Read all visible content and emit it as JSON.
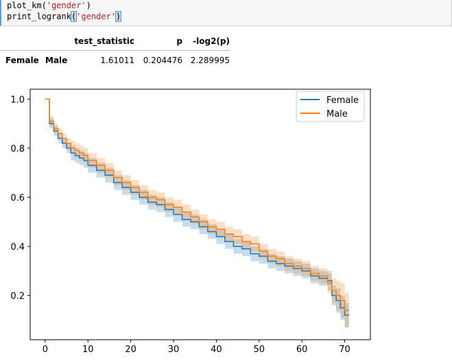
{
  "code": {
    "line1_fn": "plot_km(",
    "line1_arg": "'gender'",
    "line1_close": ")",
    "line2_fn": "print_logrank",
    "line2_open": "(",
    "line2_arg": "'gender'",
    "line2_close": ")"
  },
  "table": {
    "columns": [
      "test_statistic",
      "p",
      "-log2(p)"
    ],
    "rows": [
      {
        "index": [
          "Female",
          "Male"
        ],
        "values": [
          "1.61011",
          "0.204476",
          "2.289995"
        ]
      }
    ]
  },
  "colors": {
    "female": "#1f77b4",
    "male": "#ff7f0e"
  },
  "chart_data": {
    "type": "line",
    "title": "",
    "xlabel": "",
    "ylabel": "",
    "xlim": [
      -3.5,
      76
    ],
    "ylim": [
      0.02,
      1.04
    ],
    "xticks": [
      0,
      10,
      20,
      30,
      40,
      50,
      60,
      70
    ],
    "yticks": [
      0.2,
      0.4,
      0.6,
      0.8,
      1.0
    ],
    "xtick_labels": [
      "0",
      "10",
      "20",
      "30",
      "40",
      "50",
      "60",
      "70"
    ],
    "ytick_labels": [
      "0.2",
      "0.4",
      "0.6",
      "0.8",
      "1.0"
    ],
    "legend_position": "top-right",
    "step": true,
    "series": [
      {
        "name": "Female",
        "color": "#1f77b4",
        "x": [
          0,
          1,
          2,
          3,
          4,
          5,
          6,
          7,
          8,
          9,
          10,
          12,
          14,
          16,
          18,
          20,
          22,
          24,
          26,
          28,
          30,
          32,
          34,
          36,
          38,
          40,
          42,
          44,
          46,
          48,
          50,
          52,
          54,
          56,
          58,
          60,
          62,
          64,
          66,
          67,
          68,
          69,
          70,
          71
        ],
        "y": [
          1.0,
          0.9,
          0.87,
          0.84,
          0.82,
          0.8,
          0.78,
          0.77,
          0.76,
          0.75,
          0.73,
          0.71,
          0.69,
          0.66,
          0.64,
          0.62,
          0.6,
          0.58,
          0.57,
          0.55,
          0.53,
          0.51,
          0.5,
          0.48,
          0.46,
          0.44,
          0.42,
          0.4,
          0.39,
          0.37,
          0.36,
          0.34,
          0.33,
          0.32,
          0.31,
          0.3,
          0.28,
          0.27,
          0.26,
          0.2,
          0.18,
          0.15,
          0.12,
          0.12
        ],
        "ci_lower": [
          1.0,
          0.88,
          0.85,
          0.82,
          0.8,
          0.78,
          0.75,
          0.74,
          0.73,
          0.72,
          0.7,
          0.68,
          0.66,
          0.63,
          0.61,
          0.59,
          0.57,
          0.55,
          0.54,
          0.52,
          0.5,
          0.48,
          0.47,
          0.45,
          0.43,
          0.41,
          0.39,
          0.37,
          0.36,
          0.34,
          0.33,
          0.31,
          0.3,
          0.29,
          0.28,
          0.27,
          0.25,
          0.24,
          0.22,
          0.16,
          0.13,
          0.1,
          0.07,
          0.07
        ],
        "ci_upper": [
          1.0,
          0.92,
          0.89,
          0.86,
          0.84,
          0.82,
          0.81,
          0.8,
          0.79,
          0.78,
          0.76,
          0.74,
          0.72,
          0.69,
          0.67,
          0.65,
          0.63,
          0.61,
          0.6,
          0.58,
          0.56,
          0.54,
          0.53,
          0.51,
          0.49,
          0.47,
          0.45,
          0.43,
          0.42,
          0.4,
          0.39,
          0.37,
          0.36,
          0.35,
          0.34,
          0.33,
          0.31,
          0.3,
          0.3,
          0.24,
          0.23,
          0.2,
          0.17,
          0.17
        ]
      },
      {
        "name": "Male",
        "color": "#ff7f0e",
        "x": [
          0,
          1,
          2,
          3,
          4,
          5,
          6,
          7,
          8,
          9,
          10,
          12,
          14,
          16,
          18,
          20,
          22,
          24,
          26,
          28,
          30,
          32,
          34,
          36,
          38,
          40,
          42,
          44,
          46,
          48,
          50,
          52,
          54,
          56,
          58,
          60,
          62,
          64,
          66,
          67,
          68,
          69,
          70,
          71
        ],
        "y": [
          1.0,
          0.91,
          0.88,
          0.86,
          0.84,
          0.82,
          0.8,
          0.79,
          0.78,
          0.77,
          0.75,
          0.73,
          0.71,
          0.68,
          0.66,
          0.64,
          0.62,
          0.6,
          0.59,
          0.57,
          0.56,
          0.54,
          0.52,
          0.5,
          0.48,
          0.47,
          0.45,
          0.44,
          0.42,
          0.41,
          0.38,
          0.36,
          0.35,
          0.33,
          0.32,
          0.31,
          0.29,
          0.28,
          0.25,
          0.22,
          0.2,
          0.18,
          0.14,
          0.14
        ],
        "ci_lower": [
          1.0,
          0.89,
          0.86,
          0.84,
          0.82,
          0.8,
          0.78,
          0.76,
          0.75,
          0.74,
          0.72,
          0.7,
          0.68,
          0.65,
          0.63,
          0.61,
          0.59,
          0.57,
          0.56,
          0.54,
          0.53,
          0.51,
          0.49,
          0.47,
          0.45,
          0.44,
          0.42,
          0.41,
          0.39,
          0.38,
          0.35,
          0.33,
          0.32,
          0.3,
          0.29,
          0.28,
          0.26,
          0.25,
          0.21,
          0.17,
          0.14,
          0.11,
          0.07,
          0.07
        ],
        "ci_upper": [
          1.0,
          0.93,
          0.9,
          0.88,
          0.86,
          0.84,
          0.83,
          0.82,
          0.81,
          0.8,
          0.78,
          0.76,
          0.74,
          0.71,
          0.69,
          0.67,
          0.65,
          0.63,
          0.62,
          0.6,
          0.59,
          0.57,
          0.55,
          0.53,
          0.51,
          0.5,
          0.48,
          0.47,
          0.45,
          0.44,
          0.41,
          0.39,
          0.38,
          0.36,
          0.35,
          0.34,
          0.32,
          0.31,
          0.29,
          0.27,
          0.26,
          0.25,
          0.21,
          0.21
        ]
      }
    ]
  }
}
